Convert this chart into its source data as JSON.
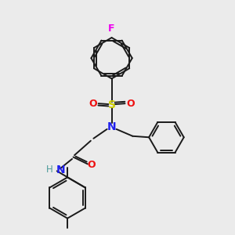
{
  "bg_color": "#ebebeb",
  "bond_color": "#1a1a1a",
  "N_color": "#2020ee",
  "O_color": "#ee1010",
  "S_color": "#cccc00",
  "F_color": "#ee00ee",
  "H_color": "#4a9a9a",
  "lw": 1.4,
  "xlim": [
    0,
    10
  ],
  "ylim": [
    0,
    10
  ]
}
